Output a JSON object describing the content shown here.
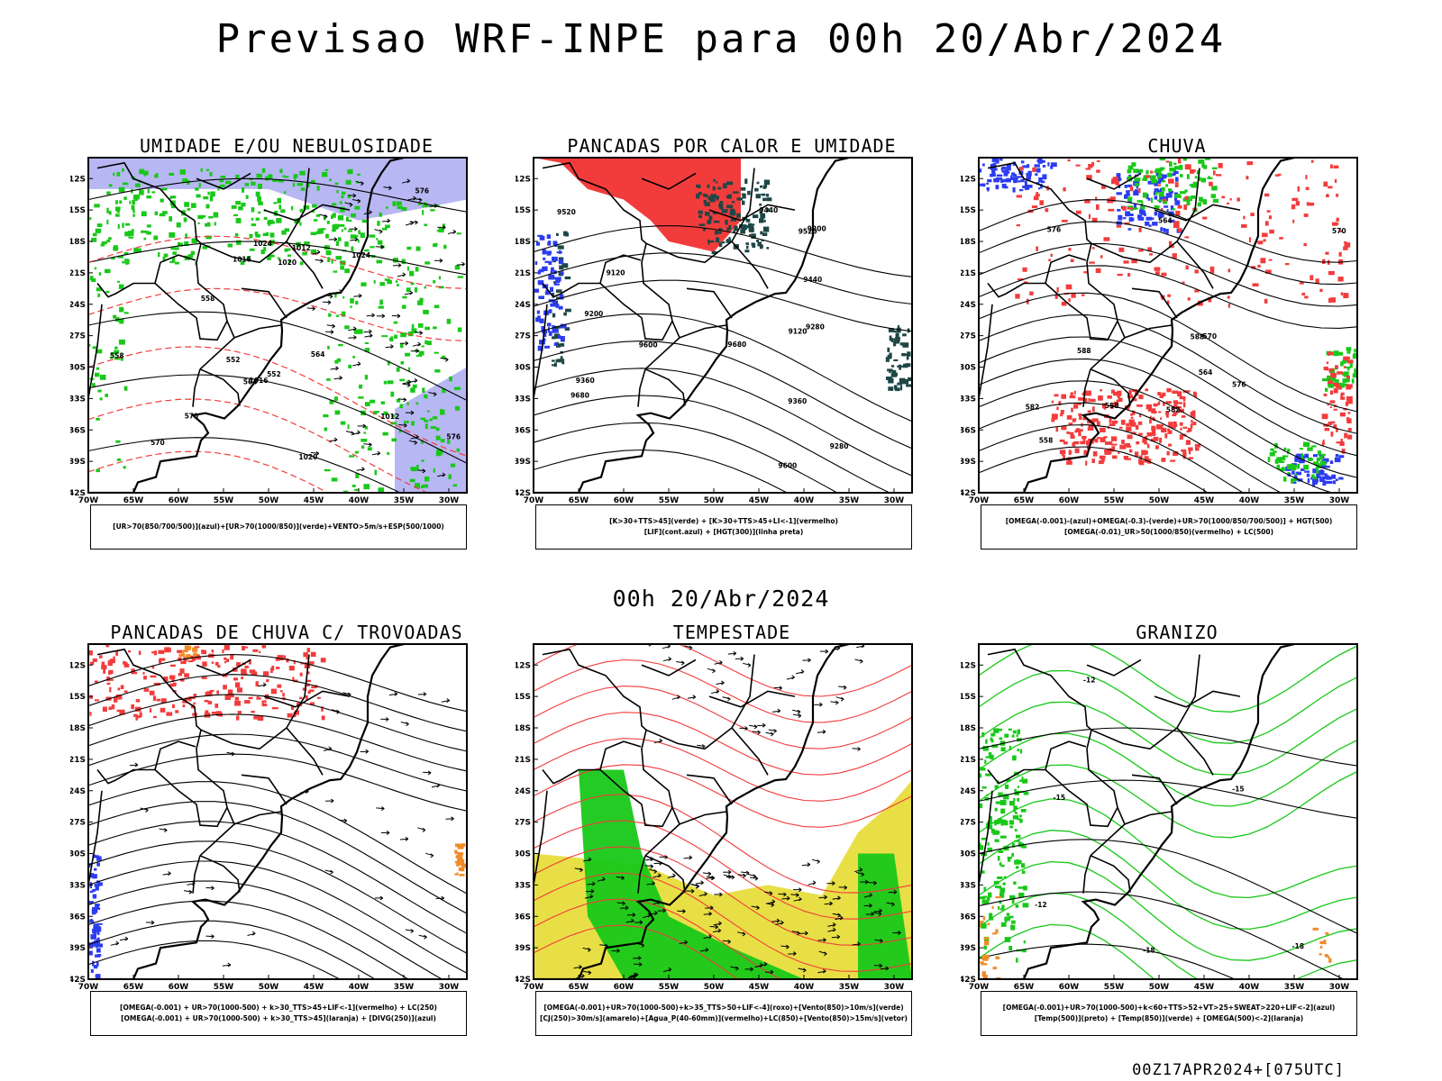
{
  "header": {
    "title": "Previsao WRF-INPE  para 00h 20/Abr/2024",
    "mid_title": "00h 20/Abr/2024",
    "footer": "00Z17APR2024+[075UTC]"
  },
  "colors": {
    "red": "#f23c3c",
    "green": "#19c819",
    "blue": "#2b3cf0",
    "lavender": "#a5a5f0",
    "yellow": "#e6dc32",
    "darkteal": "#1e4646",
    "orange": "#f08c28",
    "black": "#000000"
  },
  "chart_data": [
    {
      "type": "map",
      "title": "UMIDADE E/OU NEBULOSIDADE",
      "legend_lines": [
        "[UR>70(850/700/500)](azul)+[UR>70(1000/850)](verde)+VENTO>5m/s+ESP(500/1000)"
      ],
      "lon_ticks": [
        "70W",
        "65W",
        "60W",
        "55W",
        "50W",
        "45W",
        "40W",
        "35W",
        "30W"
      ],
      "lat_ticks": [
        "12S",
        "15S",
        "18S",
        "21S",
        "24S",
        "27S",
        "30S",
        "33S",
        "36S",
        "39S",
        "42S"
      ],
      "contour_labels": [
        "1012",
        "1016",
        "1020",
        "1024",
        "564",
        "570",
        "576",
        "552",
        "558"
      ]
    },
    {
      "type": "map",
      "title": "PANCADAS POR CALOR E UMIDADE",
      "legend_lines": [
        "[K>30+TTS>45](verde) + [K>30+TTS>45+LI<-1](vermelho)",
        "[LIF](cont.azul) + [HGT(300)](linha preta)"
      ],
      "lon_ticks": [
        "70W",
        "65W",
        "60W",
        "55W",
        "50W",
        "45W",
        "40W",
        "35W",
        "30W"
      ],
      "lat_ticks": [
        "12S",
        "15S",
        "18S",
        "21S",
        "24S",
        "27S",
        "30S",
        "33S",
        "36S",
        "39S",
        "42S"
      ],
      "contour_labels": [
        "9680",
        "9600",
        "9520",
        "9440",
        "9360",
        "9280",
        "9200",
        "9120"
      ]
    },
    {
      "type": "map",
      "title": "CHUVA",
      "legend_lines": [
        "[OMEGA(-0.001)-(azul)+OMEGA(-0.3)-(verde)+UR>70(1000/850/700/500)] + HGT(500)",
        "[OMEGA(-0.01)_UR>50(1000/850)(vermelho) + LC(500)"
      ],
      "lon_ticks": [
        "70W",
        "65W",
        "60W",
        "55W",
        "50W",
        "45W",
        "40W",
        "35W",
        "30W"
      ],
      "lat_ticks": [
        "12S",
        "15S",
        "18S",
        "21S",
        "24S",
        "27S",
        "30S",
        "33S",
        "36S",
        "39S",
        "42S"
      ],
      "contour_labels": [
        "582",
        "588",
        "576",
        "570",
        "564",
        "558"
      ]
    },
    {
      "type": "map",
      "title": "PANCADAS DE CHUVA C/ TROVOADAS",
      "legend_lines": [
        "[OMEGA(-0.001) + UR>70(1000-500) + k>30_TTS>45+LIF<-1](vermelho) + LC(250)",
        "[OMEGA(-0.001) + UR>70(1000-500) + k>30_TTS>45](laranja) + [DIVG(250)](azul)"
      ],
      "lon_ticks": [
        "70W",
        "65W",
        "60W",
        "55W",
        "50W",
        "45W",
        "40W",
        "35W",
        "30W"
      ],
      "lat_ticks": [
        "12S",
        "15S",
        "18S",
        "21S",
        "24S",
        "27S",
        "30S",
        "33S",
        "36S",
        "39S",
        "42S"
      ],
      "contour_labels": []
    },
    {
      "type": "map",
      "title": "TEMPESTADE",
      "legend_lines": [
        "[OMEGA(-0.001)+UR>70(1000-500)+k>35_TTS>50+LIF<-4](roxo)+[Vento(850)>10m/s](verde)",
        "[CJ(250)>30m/s](amarelo)+[Agua_P(40-60mm)](vermelho)+LC(850)+[Vento(850)>15m/s](vetor)"
      ],
      "lon_ticks": [
        "70W",
        "65W",
        "60W",
        "55W",
        "50W",
        "45W",
        "40W",
        "35W",
        "30W"
      ],
      "lat_ticks": [
        "12S",
        "15S",
        "18S",
        "21S",
        "24S",
        "27S",
        "30S",
        "33S",
        "36S",
        "39S",
        "42S"
      ],
      "contour_labels": []
    },
    {
      "type": "map",
      "title": "GRANIZO",
      "legend_lines": [
        "[OMEGA(-0.001)+UR>70(1000-500)+k<60+TTS>52+VT>25+SWEAT>220+LIF<-2](azul)",
        "[Temp(500)](preto) + [Temp(850)](verde) + [OMEGA(500)<-2](laranja)"
      ],
      "lon_ticks": [
        "70W",
        "65W",
        "60W",
        "55W",
        "50W",
        "45W",
        "40W",
        "35W",
        "30W"
      ],
      "lat_ticks": [
        "12S",
        "15S",
        "18S",
        "21S",
        "24S",
        "27S",
        "30S",
        "33S",
        "36S",
        "39S",
        "42S"
      ],
      "contour_labels": [
        "-12",
        "-15",
        "-18"
      ]
    }
  ]
}
